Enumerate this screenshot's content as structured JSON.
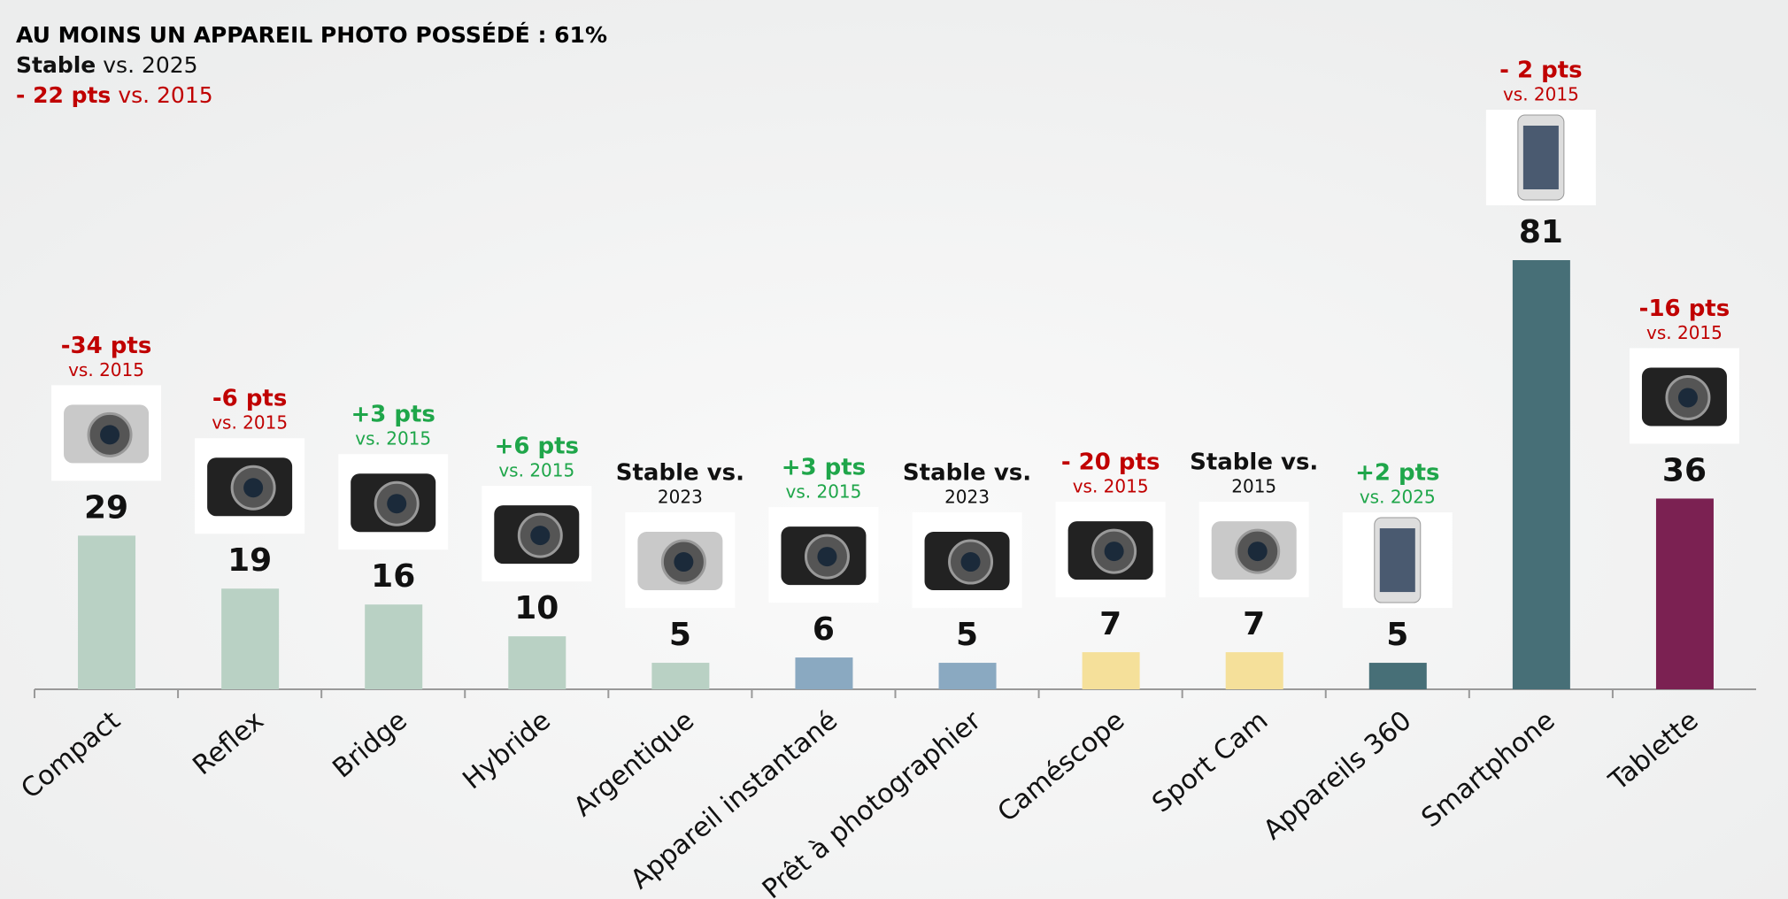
{
  "chart_data": {
    "type": "bar",
    "title": "AU MOINS UN APPAREIL PHOTO POSSÉDÉ : 61%",
    "subtitle_lines": [
      {
        "strong": "Stable",
        "rest": "vs. 2025",
        "color": "#111111"
      },
      {
        "strong": "- 22 pts",
        "rest": "vs. 2015",
        "color": "#c00000"
      }
    ],
    "categories": [
      "Compact",
      "Reflex",
      "Bridge",
      "Hybride",
      "Argentique",
      "Appareil instantané",
      "Prêt à photographier",
      "Caméscope",
      "Sport Cam",
      "Appareils 360",
      "Smartphone",
      "Tablette"
    ],
    "values": [
      29,
      19,
      16,
      10,
      5,
      6,
      5,
      7,
      7,
      5,
      81,
      36
    ],
    "colors": [
      "#b9d1c4",
      "#b9d1c4",
      "#b9d1c4",
      "#b9d1c4",
      "#b9d1c4",
      "#8aa9c1",
      "#8aa9c1",
      "#f5e09a",
      "#f5e09a",
      "#476f77",
      "#476f77",
      "#7b2152"
    ],
    "annotations": [
      {
        "delta": "-34 pts",
        "ref": "vs. 2015",
        "color": "#c00000"
      },
      {
        "delta": "-6 pts",
        "ref": "vs. 2015",
        "color": "#c00000"
      },
      {
        "delta": "+3 pts",
        "ref": "vs. 2015",
        "color": "#1fa64a"
      },
      {
        "delta": "+6 pts",
        "ref": "vs. 2015",
        "color": "#1fa64a"
      },
      {
        "delta": "Stable vs.",
        "ref": "2023",
        "color": "#111111"
      },
      {
        "delta": "+3 pts",
        "ref": "vs. 2015",
        "color": "#1fa64a"
      },
      {
        "delta": "Stable vs.",
        "ref": "2023",
        "color": "#111111"
      },
      {
        "delta": "- 20 pts",
        "ref": "vs. 2015",
        "color": "#c00000"
      },
      {
        "delta": "Stable vs.",
        "ref": "2015",
        "color": "#111111"
      },
      {
        "delta": "+2 pts",
        "ref": "vs. 2025",
        "color": "#1fa64a"
      },
      {
        "delta": "- 2 pts",
        "ref": "vs. 2015",
        "color": "#c00000"
      },
      {
        "delta": "-16 pts",
        "ref": "vs. 2015",
        "color": "#c00000"
      }
    ]
  }
}
